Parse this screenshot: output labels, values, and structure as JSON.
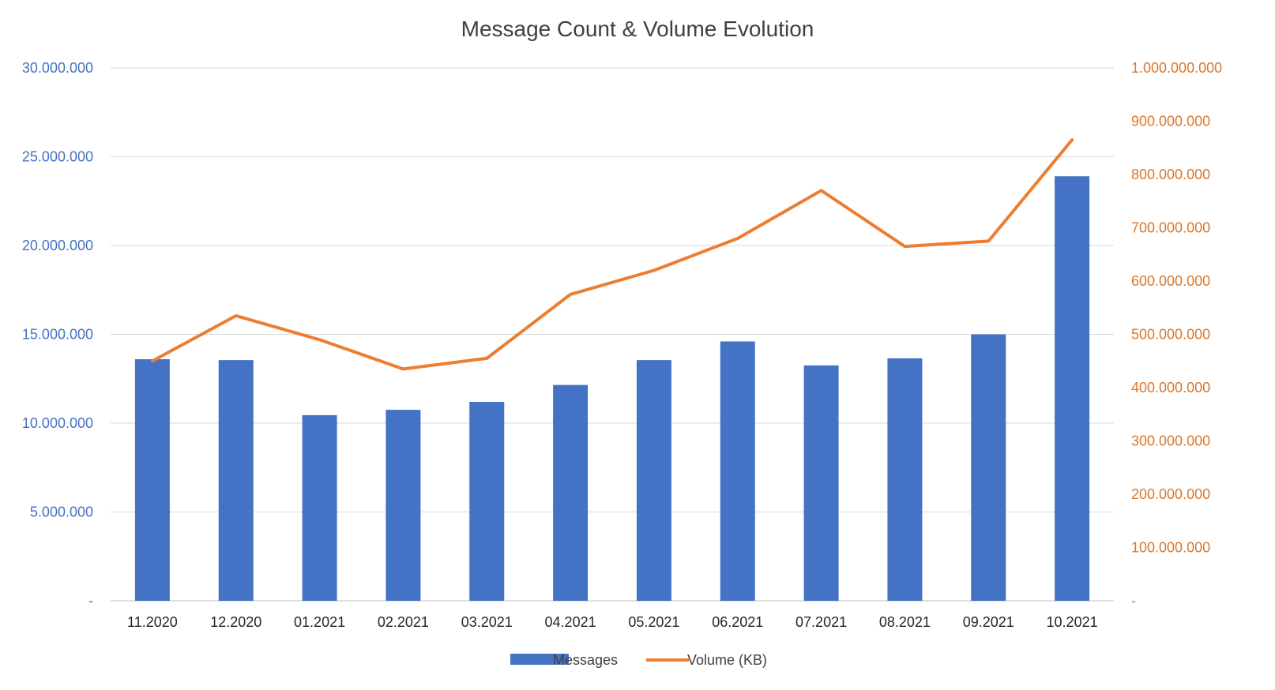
{
  "chart_data": {
    "type": "bar",
    "title": "Message Count & Volume Evolution",
    "categories": [
      "11.2020",
      "12.2020",
      "01.2021",
      "02.2021",
      "03.2021",
      "04.2021",
      "05.2021",
      "06.2021",
      "07.2021",
      "08.2021",
      "09.2021",
      "10.2021"
    ],
    "series": [
      {
        "name": "Messages",
        "type": "bar",
        "axis": "left",
        "color": "#4472C4",
        "values": [
          13600000,
          13550000,
          10450000,
          10750000,
          11200000,
          12150000,
          13550000,
          14600000,
          13250000,
          13650000,
          15000000,
          23900000
        ]
      },
      {
        "name": "Volume (KB)",
        "type": "line",
        "axis": "right",
        "color": "#ED7D31",
        "values": [
          450000000,
          535000000,
          490000000,
          435000000,
          455000000,
          575000000,
          620000000,
          680000000,
          770000000,
          665000000,
          675000000,
          865000000
        ]
      }
    ],
    "y_left": {
      "range": [
        0,
        30000000
      ],
      "tick_labels": [
        "-",
        "5.000.000",
        "10.000.000",
        "15.000.000",
        "20.000.000",
        "25.000.000",
        "30.000.000"
      ]
    },
    "y_right": {
      "range": [
        0,
        1000000000
      ],
      "tick_labels": [
        "-",
        "100.000.000",
        "200.000.000",
        "300.000.000",
        "400.000.000",
        "500.000.000",
        "600.000.000",
        "700.000.000",
        "800.000.000",
        "900.000.000",
        "1.000.000.000"
      ]
    },
    "grid": true,
    "legend_position": "bottom"
  }
}
